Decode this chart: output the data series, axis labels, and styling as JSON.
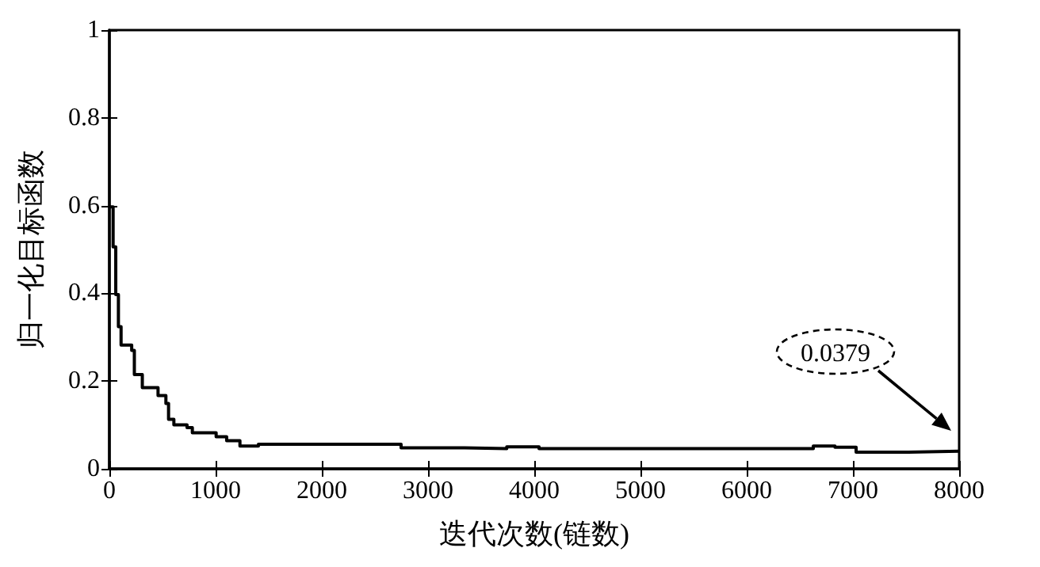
{
  "chart_data": {
    "type": "step",
    "xlabel": "迭代次数(链数)",
    "ylabel": "归一化目标函数",
    "x": [
      0,
      35,
      60,
      85,
      110,
      210,
      235,
      310,
      408,
      458,
      532,
      557,
      607,
      731,
      781,
      1005,
      1104,
      1229,
      1403,
      2149,
      2746,
      3343,
      3741,
      4045,
      4791,
      6627,
      6831,
      7030,
      7522,
      8000
    ],
    "series": [
      {
        "color": "#000000",
        "values": [
          0.597,
          0.506,
          0.397,
          0.324,
          0.282,
          0.27,
          0.215,
          0.185,
          0.185,
          0.167,
          0.149,
          0.113,
          0.1,
          0.094,
          0.082,
          0.073,
          0.064,
          0.052,
          0.056,
          0.056,
          0.048,
          0.046,
          0.05,
          0.046,
          0.046,
          0.052,
          0.049,
          0.038,
          0.04,
          0.038
        ]
      }
    ],
    "xlim": [
      0,
      8000
    ],
    "xticks": [
      0,
      1000,
      2000,
      3000,
      4000,
      5000,
      6000,
      7000,
      8000
    ],
    "ylim": [
      0,
      1
    ],
    "yticks": [
      0,
      0.2,
      0.4,
      0.6,
      0.8,
      1
    ],
    "grid": false,
    "marker": "none",
    "line_style": "solid",
    "annotations": [
      "0.0379"
    ]
  }
}
